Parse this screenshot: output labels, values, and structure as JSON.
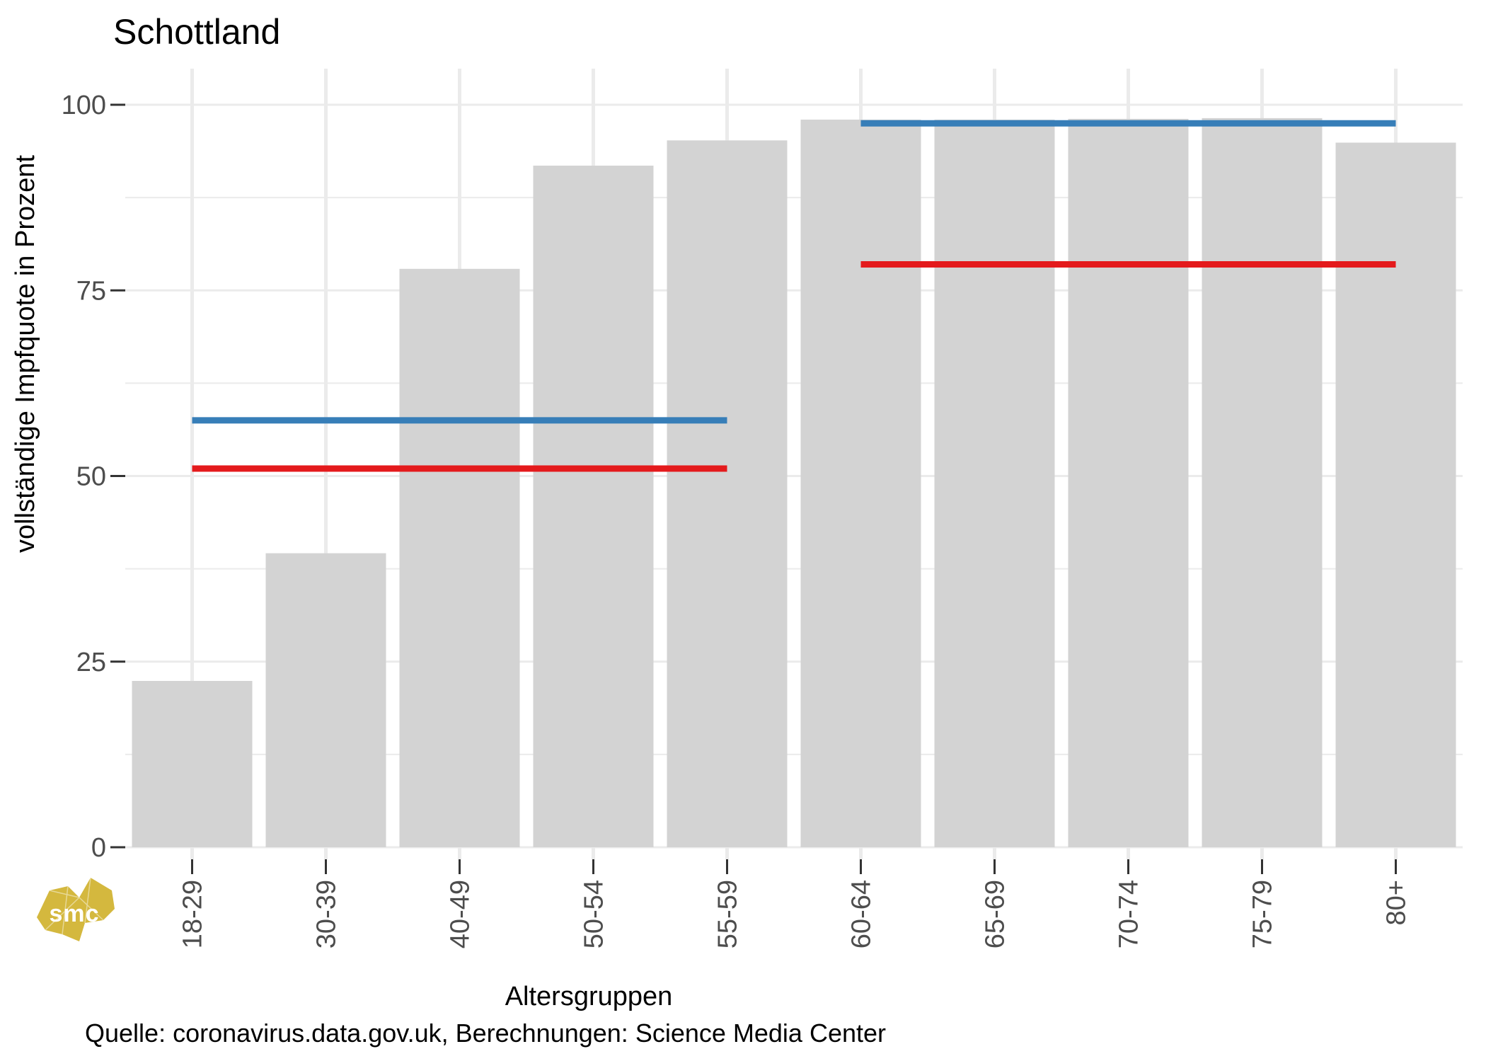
{
  "header": {
    "title": "Schottland"
  },
  "chart_data": {
    "type": "bar",
    "title": "Schottland",
    "categories": [
      "18-29",
      "30-39",
      "40-49",
      "50-54",
      "55-59",
      "60-64",
      "65-69",
      "70-74",
      "75-79",
      "80+"
    ],
    "values": [
      22.4,
      39.6,
      77.9,
      91.8,
      95.2,
      98,
      98,
      98.1,
      98.2,
      94.9
    ],
    "xlabel": "Altersgruppen",
    "ylabel": "vollständige Impfquote in Prozent",
    "y_ticks": [
      0,
      25,
      50,
      75,
      100
    ],
    "y_tick_labels": [
      "0",
      "25",
      "50",
      "75",
      "100"
    ],
    "ylim": [
      0,
      105
    ],
    "grid": "major+minor",
    "legend": "none",
    "bar_color": "#d3d3d3",
    "reference_lines": [
      {
        "color": "#377eb8",
        "value": 57.5,
        "span": [
          "18-29",
          "55-59"
        ]
      },
      {
        "color": "#e41a1c",
        "value": 51.0,
        "span": [
          "18-29",
          "55-59"
        ]
      },
      {
        "color": "#377eb8",
        "value": 97.5,
        "span": [
          "60-64",
          "80+"
        ]
      },
      {
        "color": "#e41a1c",
        "value": 78.5,
        "span": [
          "60-64",
          "80+"
        ]
      }
    ]
  },
  "colors": {
    "bar": "#d3d3d3",
    "grid": "#ebebeb",
    "tick_mark": "#333333",
    "axis_text": "#4d4d4d",
    "blue_line": "#377eb8",
    "red_line": "#e41a1c"
  },
  "footer": {
    "source": "Quelle: coronavirus.data.gov.uk, Berechnungen: Science Media Center"
  },
  "logo": {
    "text": "smc",
    "color": "#d4b83e"
  }
}
